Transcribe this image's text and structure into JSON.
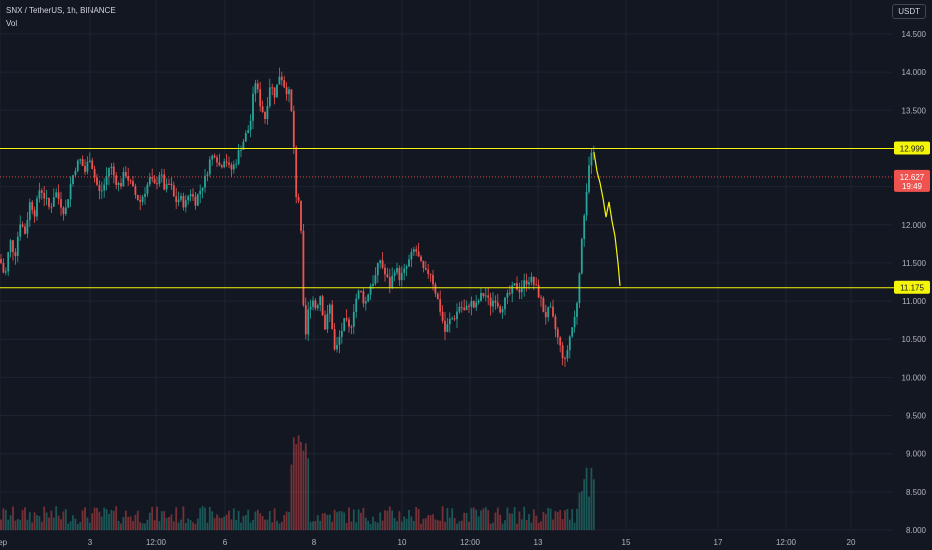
{
  "header": {
    "title": "SNX / TetherUS, 1h, BINANCE",
    "volume_label": "Vol",
    "currency_badge": "USDT"
  },
  "colors": {
    "background": "#131722",
    "grid": "#1f2330",
    "up": "#26a69a",
    "down": "#ef5350",
    "level_line": "#f5f50a",
    "price_line": "#ef5350",
    "text": "#b2b5be"
  },
  "chart_data": {
    "type": "candlestick",
    "y_axis_ticks": [
      "14.500",
      "14.000",
      "13.500",
      "13.000",
      "12.500",
      "12.000",
      "11.500",
      "11.000",
      "10.500",
      "10.000",
      "9.500",
      "9.000",
      "8.500",
      "8.000"
    ],
    "ylim": [
      8.0,
      14.8
    ],
    "x_axis_ticks": [
      "Sep",
      "3",
      "12:00",
      "6",
      "8",
      "10",
      "12:00",
      "13",
      "15",
      "17",
      "12:00",
      "20"
    ],
    "horizontal_levels": [
      {
        "label": "12.999",
        "value": 12.999
      },
      {
        "label": "11.175",
        "value": 11.175
      }
    ],
    "current_price": {
      "label": "12.627",
      "value": 12.627,
      "countdown": "19:49"
    },
    "price_path": [
      [
        0,
        11.55
      ],
      [
        5,
        11.3
      ],
      [
        10,
        11.8
      ],
      [
        15,
        11.6
      ],
      [
        20,
        12.05
      ],
      [
        25,
        11.9
      ],
      [
        30,
        12.3
      ],
      [
        35,
        12.15
      ],
      [
        40,
        12.5
      ],
      [
        45,
        12.35
      ],
      [
        50,
        12.2
      ],
      [
        55,
        12.45
      ],
      [
        60,
        12.3
      ],
      [
        65,
        12.15
      ],
      [
        70,
        12.5
      ],
      [
        75,
        12.75
      ],
      [
        80,
        12.85
      ],
      [
        85,
        12.7
      ],
      [
        90,
        12.9
      ],
      [
        95,
        12.6
      ],
      [
        100,
        12.4
      ],
      [
        105,
        12.55
      ],
      [
        110,
        12.8
      ],
      [
        115,
        12.6
      ],
      [
        120,
        12.5
      ],
      [
        125,
        12.7
      ],
      [
        130,
        12.55
      ],
      [
        135,
        12.4
      ],
      [
        140,
        12.3
      ],
      [
        145,
        12.45
      ],
      [
        150,
        12.6
      ],
      [
        155,
        12.5
      ],
      [
        160,
        12.7
      ],
      [
        165,
        12.45
      ],
      [
        170,
        12.55
      ],
      [
        175,
        12.3
      ],
      [
        180,
        12.35
      ],
      [
        185,
        12.25
      ],
      [
        190,
        12.45
      ],
      [
        195,
        12.3
      ],
      [
        200,
        12.45
      ],
      [
        205,
        12.6
      ],
      [
        210,
        12.85
      ],
      [
        215,
        12.95
      ],
      [
        220,
        12.75
      ],
      [
        225,
        12.9
      ],
      [
        230,
        12.7
      ],
      [
        235,
        12.8
      ],
      [
        240,
        13.0
      ],
      [
        245,
        13.15
      ],
      [
        250,
        13.3
      ],
      [
        255,
        13.9
      ],
      [
        260,
        13.6
      ],
      [
        265,
        13.4
      ],
      [
        270,
        13.85
      ],
      [
        275,
        13.7
      ],
      [
        280,
        14.0
      ],
      [
        285,
        13.8
      ],
      [
        290,
        13.7
      ],
      [
        293,
        13.2
      ],
      [
        296,
        12.4
      ],
      [
        300,
        12.3
      ],
      [
        303,
        11.0
      ],
      [
        305,
        10.45
      ],
      [
        308,
        10.85
      ],
      [
        312,
        11.05
      ],
      [
        316,
        10.9
      ],
      [
        320,
        11.1
      ],
      [
        325,
        10.65
      ],
      [
        330,
        10.95
      ],
      [
        335,
        10.3
      ],
      [
        340,
        10.55
      ],
      [
        345,
        10.75
      ],
      [
        350,
        10.6
      ],
      [
        355,
        11.0
      ],
      [
        360,
        11.15
      ],
      [
        365,
        10.95
      ],
      [
        370,
        11.2
      ],
      [
        375,
        11.3
      ],
      [
        380,
        11.55
      ],
      [
        385,
        11.35
      ],
      [
        390,
        11.2
      ],
      [
        395,
        11.45
      ],
      [
        400,
        11.3
      ],
      [
        405,
        11.4
      ],
      [
        410,
        11.55
      ],
      [
        415,
        11.7
      ],
      [
        420,
        11.5
      ],
      [
        425,
        11.35
      ],
      [
        430,
        11.4
      ],
      [
        435,
        11.15
      ],
      [
        440,
        10.9
      ],
      [
        445,
        10.6
      ],
      [
        450,
        10.75
      ],
      [
        455,
        10.8
      ],
      [
        460,
        10.95
      ],
      [
        465,
        10.85
      ],
      [
        470,
        11.0
      ],
      [
        475,
        10.9
      ],
      [
        480,
        11.05
      ],
      [
        485,
        11.1
      ],
      [
        490,
        10.95
      ],
      [
        495,
        11.05
      ],
      [
        500,
        10.9
      ],
      [
        505,
        11.0
      ],
      [
        510,
        11.1
      ],
      [
        515,
        11.2
      ],
      [
        520,
        11.15
      ],
      [
        525,
        11.25
      ],
      [
        530,
        11.3
      ],
      [
        535,
        11.2
      ],
      [
        540,
        11.05
      ],
      [
        545,
        10.8
      ],
      [
        550,
        10.9
      ],
      [
        555,
        10.65
      ],
      [
        560,
        10.4
      ],
      [
        565,
        10.2
      ],
      [
        570,
        10.55
      ],
      [
        575,
        10.8
      ],
      [
        578,
        11.1
      ],
      [
        582,
        11.9
      ],
      [
        586,
        12.4
      ],
      [
        590,
        12.85
      ],
      [
        594,
        12.95
      ]
    ],
    "projection_path": [
      [
        594,
        12.95
      ],
      [
        597,
        12.7
      ],
      [
        600,
        12.55
      ],
      [
        603,
        12.35
      ],
      [
        606,
        12.1
      ],
      [
        609,
        12.3
      ],
      [
        612,
        12.05
      ],
      [
        615,
        11.85
      ],
      [
        618,
        11.5
      ],
      [
        620,
        11.2
      ]
    ]
  }
}
